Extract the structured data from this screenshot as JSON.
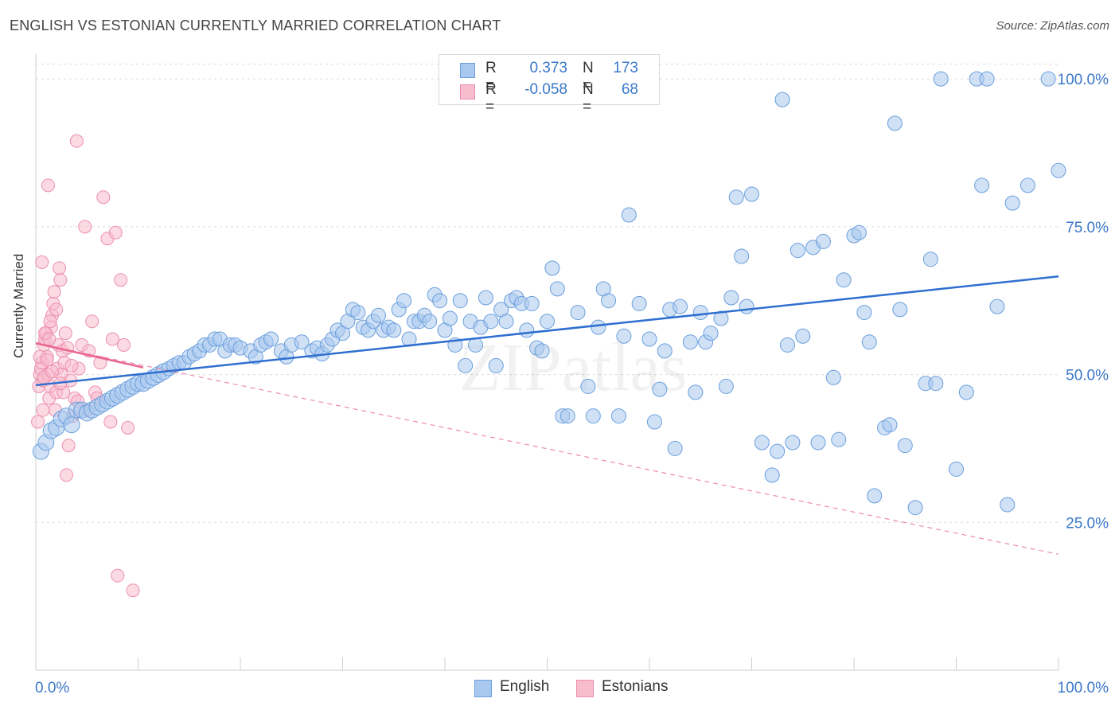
{
  "title": "ENGLISH VS ESTONIAN CURRENTLY MARRIED CORRELATION CHART",
  "source": "Source: ZipAtlas.com",
  "watermark": "ZIPatlas",
  "legend": {
    "rows": [
      {
        "r_label": "R =",
        "r_value": "0.373",
        "n_label": "N =",
        "n_value": "173",
        "color": "#9ec4ee"
      },
      {
        "r_label": "R =",
        "r_value": "-0.058",
        "n_label": "N =",
        "n_value": "68",
        "color": "#f4b1c6"
      }
    ]
  },
  "bottom_legend": {
    "english": "English",
    "estonians": "Estonians"
  },
  "colors": {
    "english_fill": "#a9c8ef",
    "english_stroke": "#6a9fdc",
    "english_line": "#2f6fcf",
    "estonian_fill": "#f7bccd",
    "estonian_stroke": "#ec8fae",
    "estonian_line": "#e8668f",
    "tick_label": "#3b78c9",
    "grid": "#dcdcdc"
  },
  "chart_data": {
    "type": "scatter",
    "title": "ENGLISH VS ESTONIAN CURRENTLY MARRIED CORRELATION CHART",
    "xlabel": "",
    "ylabel": "Currently Married",
    "xlim": [
      0,
      100
    ],
    "ylim": [
      0,
      105
    ],
    "x_tick_labels": [
      "0.0%",
      "100.0%"
    ],
    "y_ticks": [
      25,
      50,
      75,
      100
    ],
    "y_tick_labels": [
      "25.0%",
      "50.0%",
      "75.0%",
      "100.0%"
    ],
    "grid": true,
    "legend_position": "top-center",
    "series": [
      {
        "name": "English",
        "trend": {
          "x": [
            0,
            100
          ],
          "y": [
            48.2,
            66.6
          ]
        },
        "points": [
          [
            0.5,
            37
          ],
          [
            1,
            38.5
          ],
          [
            1.5,
            40.5
          ],
          [
            2,
            41
          ],
          [
            2.5,
            42.5
          ],
          [
            3,
            43
          ],
          [
            3.5,
            41.5
          ],
          [
            4,
            44
          ],
          [
            4.5,
            44
          ],
          [
            5,
            43.5
          ],
          [
            5.5,
            44
          ],
          [
            6,
            44.5
          ],
          [
            6.5,
            45
          ],
          [
            7,
            45.5
          ],
          [
            7.5,
            46
          ],
          [
            8,
            46.5
          ],
          [
            8.5,
            47
          ],
          [
            9,
            47.5
          ],
          [
            9.5,
            48
          ],
          [
            10,
            48.5
          ],
          [
            10.5,
            48.5
          ],
          [
            11,
            49
          ],
          [
            11.5,
            49.5
          ],
          [
            12,
            50
          ],
          [
            12.5,
            50.5
          ],
          [
            13,
            51
          ],
          [
            13.5,
            51.5
          ],
          [
            14,
            52
          ],
          [
            14.5,
            52
          ],
          [
            15,
            53
          ],
          [
            15.5,
            53.5
          ],
          [
            16,
            54
          ],
          [
            16.5,
            55
          ],
          [
            17,
            55
          ],
          [
            17.5,
            56
          ],
          [
            18,
            56
          ],
          [
            18.5,
            54
          ],
          [
            19,
            55
          ],
          [
            19.5,
            55
          ],
          [
            20,
            54.5
          ],
          [
            21,
            54
          ],
          [
            21.5,
            53
          ],
          [
            22,
            55
          ],
          [
            22.5,
            55.5
          ],
          [
            23,
            56
          ],
          [
            24,
            54
          ],
          [
            24.5,
            53
          ],
          [
            25,
            55
          ],
          [
            26,
            55.5
          ],
          [
            27,
            54
          ],
          [
            27.5,
            54.5
          ],
          [
            28,
            53.5
          ],
          [
            28.5,
            55
          ],
          [
            29,
            56
          ],
          [
            29.5,
            57.5
          ],
          [
            30,
            57
          ],
          [
            30.5,
            59
          ],
          [
            31,
            61
          ],
          [
            31.5,
            60.5
          ],
          [
            32,
            58
          ],
          [
            32.5,
            57.5
          ],
          [
            33,
            59
          ],
          [
            33.5,
            60
          ],
          [
            34,
            57.5
          ],
          [
            34.5,
            58
          ],
          [
            35,
            57.5
          ],
          [
            35.5,
            61
          ],
          [
            36,
            62.5
          ],
          [
            36.5,
            56
          ],
          [
            37,
            59
          ],
          [
            37.5,
            59
          ],
          [
            38,
            60
          ],
          [
            38.5,
            59
          ],
          [
            39,
            63.5
          ],
          [
            39.5,
            62.5
          ],
          [
            40,
            57.5
          ],
          [
            40.5,
            59.5
          ],
          [
            41,
            55
          ],
          [
            41.5,
            62.5
          ],
          [
            42,
            51.5
          ],
          [
            42.5,
            59
          ],
          [
            43,
            55
          ],
          [
            43.5,
            58
          ],
          [
            44,
            63
          ],
          [
            44.5,
            59
          ],
          [
            45,
            51.5
          ],
          [
            45.5,
            61
          ],
          [
            46,
            59
          ],
          [
            46.5,
            62.5
          ],
          [
            47,
            63
          ],
          [
            47.5,
            62
          ],
          [
            48,
            57.5
          ],
          [
            48.5,
            62
          ],
          [
            49,
            54.5
          ],
          [
            49.5,
            54
          ],
          [
            50,
            59
          ],
          [
            50.5,
            68
          ],
          [
            51,
            64.5
          ],
          [
            51.5,
            43
          ],
          [
            52,
            43
          ],
          [
            53,
            60.5
          ],
          [
            54,
            48
          ],
          [
            54.5,
            43
          ],
          [
            55,
            58
          ],
          [
            55.5,
            64.5
          ],
          [
            56,
            62.5
          ],
          [
            57,
            43
          ],
          [
            57.5,
            56.5
          ],
          [
            58,
            77
          ],
          [
            59,
            62
          ],
          [
            60,
            56
          ],
          [
            60.5,
            42
          ],
          [
            61,
            47.5
          ],
          [
            61.5,
            54
          ],
          [
            62,
            61
          ],
          [
            62.5,
            37.5
          ],
          [
            63,
            61.5
          ],
          [
            64,
            55.5
          ],
          [
            64.5,
            47
          ],
          [
            65,
            60.5
          ],
          [
            65.5,
            55.5
          ],
          [
            66,
            57
          ],
          [
            67,
            59.5
          ],
          [
            67.5,
            48
          ],
          [
            68,
            63
          ],
          [
            68.5,
            80
          ],
          [
            69,
            70
          ],
          [
            69.5,
            61.5
          ],
          [
            70,
            80.5
          ],
          [
            71,
            38.5
          ],
          [
            72,
            33
          ],
          [
            72.5,
            37
          ],
          [
            73,
            96.5
          ],
          [
            73.5,
            55
          ],
          [
            74,
            38.5
          ],
          [
            74.5,
            71
          ],
          [
            75,
            56.5
          ],
          [
            76,
            71.5
          ],
          [
            76.5,
            38.5
          ],
          [
            77,
            72.5
          ],
          [
            78,
            49.5
          ],
          [
            78.5,
            39
          ],
          [
            79,
            66
          ],
          [
            80,
            73.5
          ],
          [
            80.5,
            74
          ],
          [
            81,
            60.5
          ],
          [
            81.5,
            55.5
          ],
          [
            82,
            29.5
          ],
          [
            83,
            41
          ],
          [
            83.5,
            41.5
          ],
          [
            84,
            92.5
          ],
          [
            84.5,
            61
          ],
          [
            85,
            38
          ],
          [
            86,
            27.5
          ],
          [
            87,
            48.5
          ],
          [
            87.5,
            69.5
          ],
          [
            88,
            48.5
          ],
          [
            88.5,
            100
          ],
          [
            90,
            34
          ],
          [
            91,
            47
          ],
          [
            92,
            100
          ],
          [
            92.5,
            82
          ],
          [
            93,
            100
          ],
          [
            94,
            61.5
          ],
          [
            95,
            28
          ],
          [
            95.5,
            79
          ],
          [
            97,
            82
          ],
          [
            99,
            100
          ],
          [
            100,
            84.5
          ]
        ]
      },
      {
        "name": "Estonians",
        "trend": {
          "x": [
            0,
            10.5
          ],
          "y": [
            55.3,
            51.2
          ]
        },
        "trend_extended": {
          "x": [
            0,
            100
          ],
          "y": [
            55.3,
            19.6
          ]
        },
        "points": [
          [
            0.2,
            42
          ],
          [
            0.3,
            48
          ],
          [
            0.4,
            50
          ],
          [
            0.5,
            51
          ],
          [
            0.6,
            52
          ],
          [
            0.7,
            49
          ],
          [
            0.8,
            55
          ],
          [
            0.9,
            56
          ],
          [
            1,
            57
          ],
          [
            1.1,
            53
          ],
          [
            1.2,
            50
          ],
          [
            1.3,
            46
          ],
          [
            1.4,
            48
          ],
          [
            1.5,
            58
          ],
          [
            1.6,
            60
          ],
          [
            1.7,
            62
          ],
          [
            1.8,
            64
          ],
          [
            1.9,
            44
          ],
          [
            2,
            47
          ],
          [
            2.1,
            51
          ],
          [
            2.2,
            55
          ],
          [
            2.3,
            68
          ],
          [
            2.4,
            66
          ],
          [
            2.5,
            50
          ],
          [
            2.6,
            54
          ],
          [
            2.7,
            47
          ],
          [
            2.8,
            52
          ],
          [
            2.9,
            57
          ],
          [
            3,
            33
          ],
          [
            3.2,
            38
          ],
          [
            3.4,
            49
          ],
          [
            3.6,
            43
          ],
          [
            3.8,
            46
          ],
          [
            4,
            89.5
          ],
          [
            4.2,
            51
          ],
          [
            4.5,
            55
          ],
          [
            4.8,
            75
          ],
          [
            5,
            44
          ],
          [
            5.2,
            54
          ],
          [
            5.5,
            59
          ],
          [
            5.8,
            47
          ],
          [
            6,
            46
          ],
          [
            6.3,
            52
          ],
          [
            6.6,
            80
          ],
          [
            7,
            73
          ],
          [
            7.3,
            42
          ],
          [
            7.5,
            56
          ],
          [
            7.8,
            74
          ],
          [
            8,
            16
          ],
          [
            8.3,
            66
          ],
          [
            8.6,
            55
          ],
          [
            1.2,
            82
          ],
          [
            0.6,
            69
          ],
          [
            0.9,
            57
          ],
          [
            1.4,
            59
          ],
          [
            2,
            61
          ],
          [
            0.4,
            53
          ],
          [
            0.8,
            49.5
          ],
          [
            1.1,
            52.5
          ],
          [
            1.6,
            50.5
          ],
          [
            2.4,
            48.5
          ],
          [
            3.1,
            54.5
          ],
          [
            3.5,
            51.5
          ],
          [
            4.1,
            45.5
          ],
          [
            9,
            41
          ],
          [
            9.5,
            13.5
          ],
          [
            0.7,
            44
          ],
          [
            1.3,
            56
          ]
        ]
      }
    ]
  }
}
